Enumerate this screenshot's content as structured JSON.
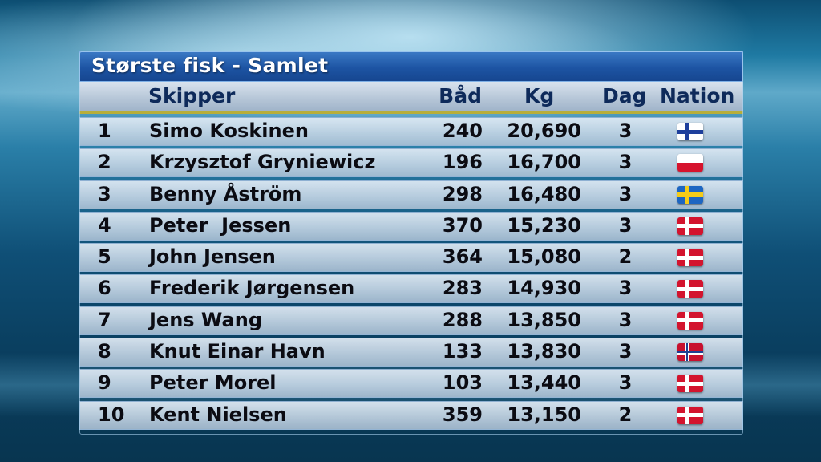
{
  "title": "Største fisk - Samlet",
  "columns": {
    "skipper": "Skipper",
    "boat": "Båd",
    "kg": "Kg",
    "day": "Dag",
    "nation": "Nation"
  },
  "flags": {
    "FIN": {
      "base": "#ffffff",
      "cross": "#1e3f9c"
    },
    "POL": {
      "top": "#ffffff",
      "bottom": "#d6132d"
    },
    "SWE": {
      "base": "#1d66c2",
      "cross": "#f5cc18"
    },
    "DEN": {
      "base": "#d3142e",
      "cross": "#ffffff"
    },
    "NOR": {
      "base": "#c8102e",
      "cross": "#ffffff",
      "inner": "#1f3f93"
    }
  },
  "rows": [
    {
      "rank": "1",
      "skipper": "Simo Koskinen",
      "boat": "240",
      "kg": "20,690",
      "day": "3",
      "nation": "FIN"
    },
    {
      "rank": "2",
      "skipper": "Krzysztof Gryniewicz",
      "boat": "196",
      "kg": "16,700",
      "day": "3",
      "nation": "POL"
    },
    {
      "rank": "3",
      "skipper": "Benny Åström",
      "boat": "298",
      "kg": "16,480",
      "day": "3",
      "nation": "SWE"
    },
    {
      "rank": "4",
      "skipper": "Peter  Jessen",
      "boat": "370",
      "kg": "15,230",
      "day": "3",
      "nation": "DEN"
    },
    {
      "rank": "5",
      "skipper": "John Jensen",
      "boat": "364",
      "kg": "15,080",
      "day": "2",
      "nation": "DEN"
    },
    {
      "rank": "6",
      "skipper": "Frederik Jørgensen",
      "boat": "283",
      "kg": "14,930",
      "day": "3",
      "nation": "DEN"
    },
    {
      "rank": "7",
      "skipper": "Jens Wang",
      "boat": "288",
      "kg": "13,850",
      "day": "3",
      "nation": "DEN"
    },
    {
      "rank": "8",
      "skipper": "Knut Einar Havn",
      "boat": "133",
      "kg": "13,830",
      "day": "3",
      "nation": "NOR"
    },
    {
      "rank": "9",
      "skipper": "Peter Morel",
      "boat": "103",
      "kg": "13,440",
      "day": "3",
      "nation": "DEN"
    },
    {
      "rank": "10",
      "skipper": "Kent Nielsen",
      "boat": "359",
      "kg": "13,150",
      "day": "2",
      "nation": "DEN"
    }
  ]
}
